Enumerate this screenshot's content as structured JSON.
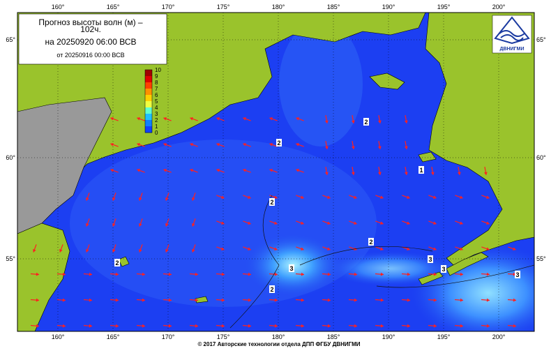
{
  "header": {
    "title_line1": "Прогноз высоты волн (м) –",
    "title_line2": "102ч.",
    "valid": "на 20250920 06:00 ВСВ",
    "issued": "от 20250916 00:00 ВСВ"
  },
  "colorbar": {
    "labels": [
      "10",
      "9",
      "8",
      "7",
      "6",
      "5",
      "4",
      "3",
      "2",
      "1",
      "0"
    ]
  },
  "lon_labels": [
    "160°",
    "165°",
    "170°",
    "175°",
    "180°",
    "185°",
    "190°",
    "195°",
    "200°"
  ],
  "lat_labels": [
    "65°",
    "60°",
    "55°"
  ],
  "contour_labels": [
    "2",
    "2",
    "2",
    "2",
    "2",
    "3",
    "3",
    "3",
    "3",
    "1",
    "2"
  ],
  "logo": "ДВНИГМИ",
  "footer": "© 2017 Авторские технологии отдела ДПП ФГБУ ДВНИГМИ"
}
